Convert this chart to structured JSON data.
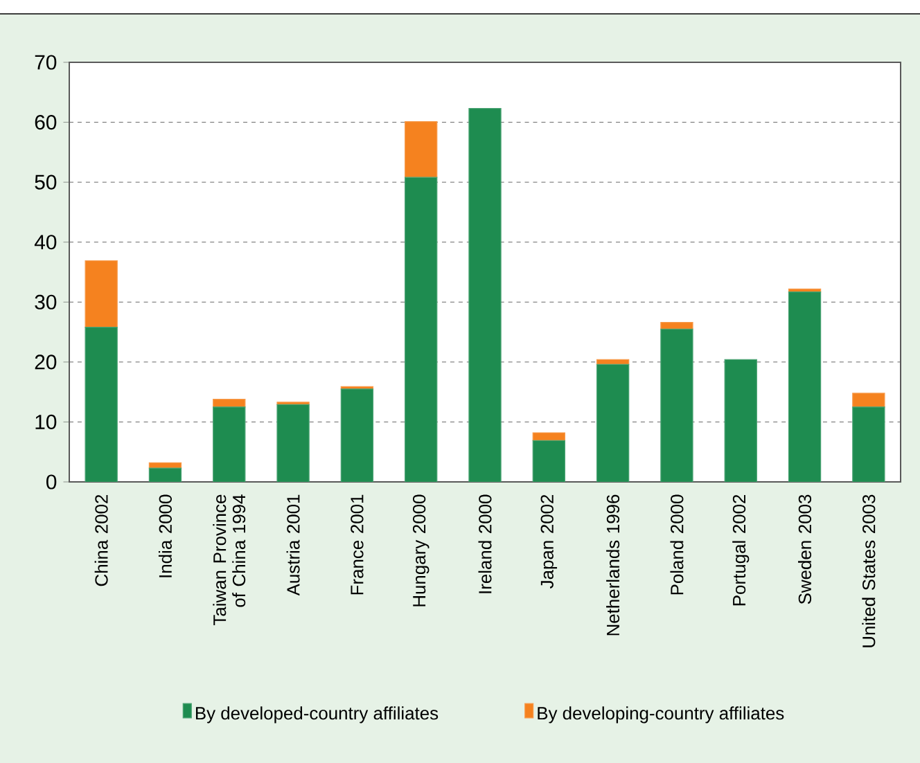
{
  "chart_data": {
    "type": "bar",
    "stacked": true,
    "categories": [
      "China 2002",
      "India 2000",
      "Taiwan Province of China 1994",
      "Austria 2001",
      "France 2001",
      "Hungary 2000",
      "Ireland 2000",
      "Japan 2002",
      "Netherlands 1996",
      "Poland 2000",
      "Portugal 2002",
      "Sweden 2003",
      "United States 2003"
    ],
    "series": [
      {
        "name": "By developed-country affiliates",
        "color": "#1e8c50",
        "values": [
          25.8,
          2.3,
          12.5,
          12.9,
          15.5,
          50.8,
          62.3,
          6.9,
          19.6,
          25.5,
          20.4,
          31.7,
          12.5
        ]
      },
      {
        "name": "By developing-country affiliates",
        "color": "#f5821f",
        "values": [
          11.1,
          0.9,
          1.3,
          0.4,
          0.4,
          9.3,
          0,
          1.3,
          0.8,
          1.1,
          0,
          0.5,
          2.3
        ]
      }
    ],
    "ylim": [
      0,
      70
    ],
    "yticks": [
      0,
      10,
      20,
      30,
      40,
      50,
      60,
      70
    ],
    "grid": "y",
    "legend": "bottom"
  }
}
